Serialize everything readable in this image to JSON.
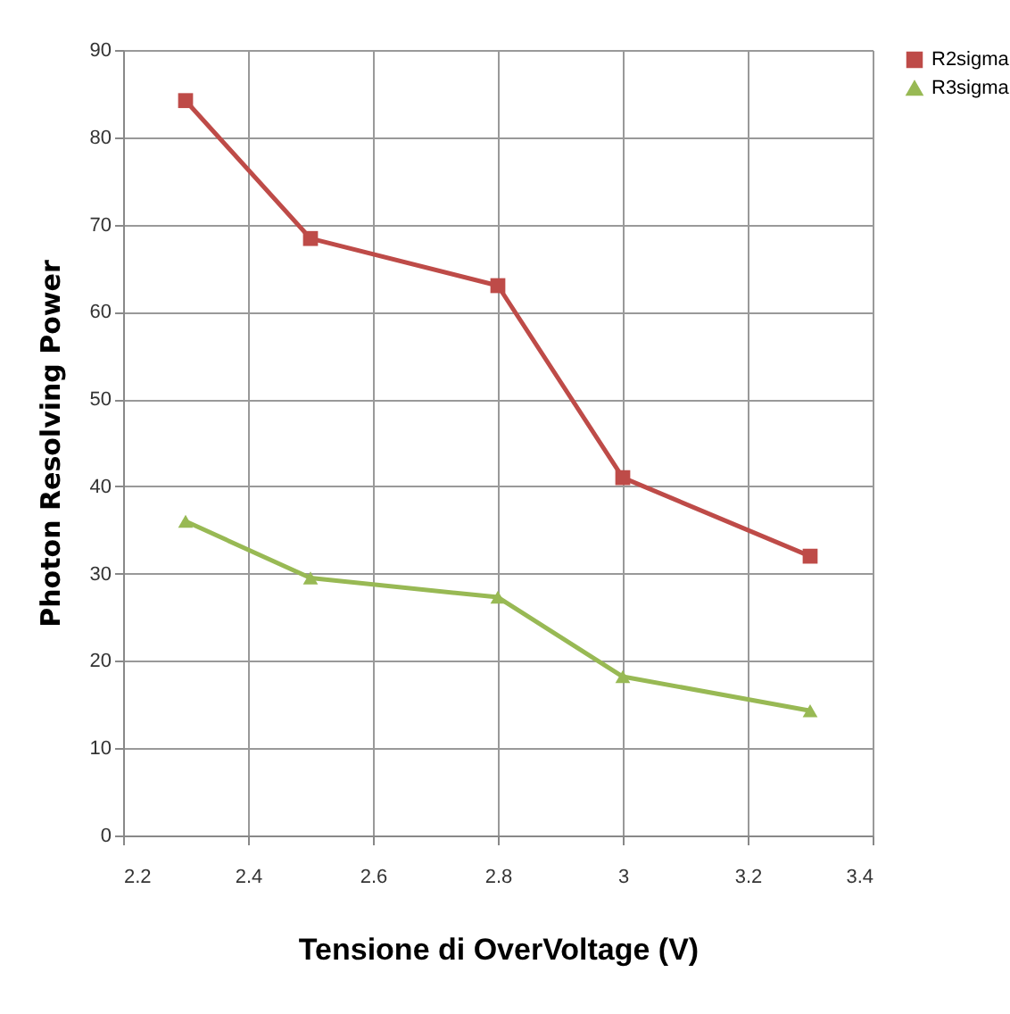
{
  "chart_data": {
    "type": "line",
    "xlabel": "Tensione di OverVoltage (V)",
    "ylabel": "Photon Resolving Power",
    "x": [
      2.3,
      2.5,
      2.8,
      3.0,
      3.3
    ],
    "series": [
      {
        "name": "R2sigma",
        "color": "#be4b48",
        "marker": "square",
        "values": [
          84.2,
          68.4,
          63,
          41,
          32
        ]
      },
      {
        "name": "R3sigma",
        "color": "#98b954",
        "marker": "triangle",
        "values": [
          36,
          29.5,
          27.3,
          18.2,
          14.3
        ]
      }
    ],
    "xlim": [
      2.2,
      3.4
    ],
    "xticks": [
      2.2,
      2.4,
      2.6,
      2.8,
      3,
      3.2,
      3.4
    ],
    "ylim": [
      0,
      90
    ],
    "yticks": [
      0,
      10,
      20,
      30,
      40,
      50,
      60,
      70,
      80,
      90
    ],
    "grid": true,
    "legend": "right",
    "line_style": "solid"
  }
}
